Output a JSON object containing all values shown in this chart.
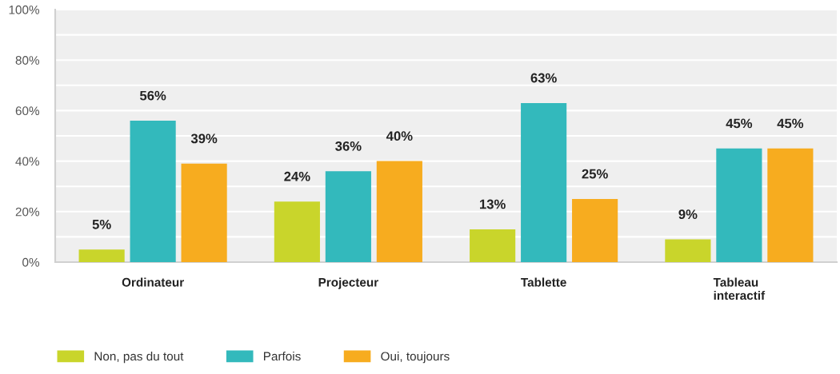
{
  "chart_data": {
    "type": "bar",
    "categories": [
      "Ordinateur",
      "Projecteur",
      "Tablette",
      "Tableau\ninteractif"
    ],
    "series": [
      {
        "name": "Non, pas du tout",
        "color": "#c9d52b",
        "values": [
          5,
          24,
          13,
          9
        ],
        "value_labels": [
          "5%",
          "24%",
          "13%",
          "9%"
        ]
      },
      {
        "name": "Parfois",
        "color": "#33b9bc",
        "values": [
          56,
          36,
          63,
          45
        ],
        "value_labels": [
          "56%",
          "36%",
          "63%",
          "45%"
        ]
      },
      {
        "name": "Oui, toujours",
        "color": "#f7ac1f",
        "values": [
          39,
          40,
          25,
          45
        ],
        "value_labels": [
          "39%",
          "40%",
          "25%",
          "45%"
        ]
      }
    ],
    "ylim": [
      0,
      100
    ],
    "yticks": [
      {
        "value": 0,
        "label": "0%"
      },
      {
        "value": 10,
        "label": null
      },
      {
        "value": 20,
        "label": "20%"
      },
      {
        "value": 30,
        "label": null
      },
      {
        "value": 40,
        "label": "40%"
      },
      {
        "value": 50,
        "label": null
      },
      {
        "value": 60,
        "label": "60%"
      },
      {
        "value": 70,
        "label": null
      },
      {
        "value": 80,
        "label": "80%"
      },
      {
        "value": 90,
        "label": null
      },
      {
        "value": 100,
        "label": "100%"
      }
    ],
    "grid": "y",
    "legend": "bottom left"
  }
}
